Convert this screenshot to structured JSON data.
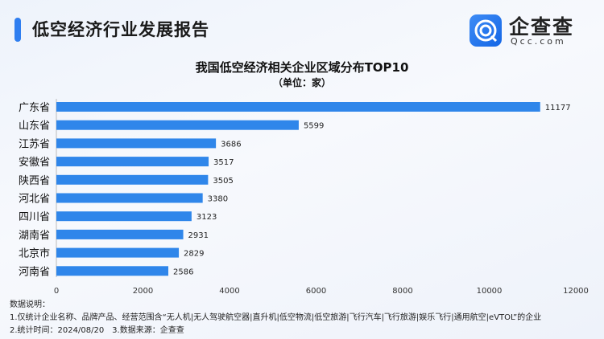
{
  "header": {
    "title": "低空经济行业发展报告",
    "logo_text": "企查查",
    "logo_sub": "Qcc.com"
  },
  "chart_data": {
    "type": "bar",
    "orientation": "horizontal",
    "title": "我国低空经济相关企业区域分布TOP10",
    "subtitle": "（单位：家）",
    "categories": [
      "广东省",
      "山东省",
      "江苏省",
      "安徽省",
      "陕西省",
      "河北省",
      "四川省",
      "湖南省",
      "北京市",
      "河南省"
    ],
    "values": [
      11177,
      5599,
      3686,
      3517,
      3505,
      3380,
      3123,
      2931,
      2829,
      2586
    ],
    "xlim": [
      0,
      12000
    ],
    "xticks": [
      "0",
      "2000",
      "4000",
      "6000",
      "8000",
      "10000",
      "12000"
    ],
    "grid": false,
    "bar_color": "#2f86ea"
  },
  "notes": {
    "heading": "数据说明：",
    "line1": "1.仅统计企业名称、品牌产品、经营范围含“无人机|无人驾驶航空器|直升机|低空物流|低空旅游|飞行汽车|飞行旅游|娱乐飞行|通用航空|eVTOL”的企业",
    "line2": "2.统计时间：2024/08/20　3.数据来源：企查查"
  }
}
